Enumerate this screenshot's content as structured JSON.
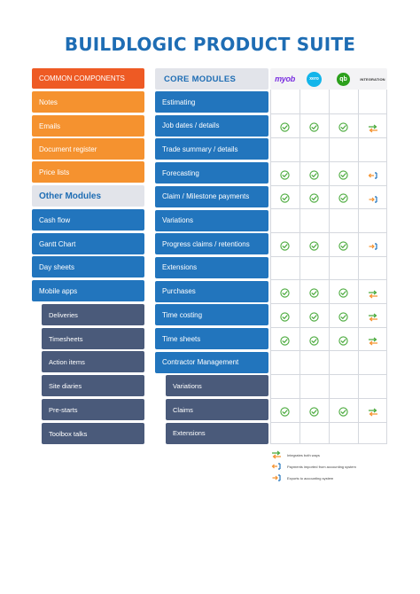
{
  "title": "BUILDLOGIC PRODUCT SUITE",
  "left_column": {
    "common_header": "COMMON COMPONENTS",
    "common_items": [
      "Notes",
      "Emails",
      "Document register",
      "Price lists"
    ],
    "other_header": "Other Modules",
    "other_items": [
      "Cash flow",
      "Gantt Chart",
      "Day sheets",
      "Mobile apps"
    ],
    "mobile_sub_items": [
      "Deliveries",
      "Timesheets",
      "Action items",
      "Site diaries",
      "Pre-starts",
      "Toolbox talks"
    ]
  },
  "core": {
    "header": "CORE MODULES",
    "logos": [
      {
        "name": "myob-logo",
        "text": "myob"
      },
      {
        "name": "xero-logo",
        "text": "xero"
      },
      {
        "name": "quickbooks-logo",
        "text": "qb"
      },
      {
        "name": "integration-label",
        "text": "INTEGRATION"
      }
    ],
    "rows": [
      {
        "label": "Estimating",
        "type": "blue",
        "myob": false,
        "xero": false,
        "qb": false,
        "integration": "none"
      },
      {
        "label": "Job dates / details",
        "type": "blue",
        "myob": true,
        "xero": true,
        "qb": true,
        "integration": "both"
      },
      {
        "label": "Trade summary / details",
        "type": "blue",
        "myob": false,
        "xero": false,
        "qb": false,
        "integration": "none"
      },
      {
        "label": "Forecasting",
        "type": "blue",
        "myob": true,
        "xero": true,
        "qb": true,
        "integration": "import"
      },
      {
        "label": "Claim / Milestone payments",
        "type": "blue",
        "myob": true,
        "xero": true,
        "qb": true,
        "integration": "export"
      },
      {
        "label": "Variations",
        "type": "blue",
        "myob": false,
        "xero": false,
        "qb": false,
        "integration": "none"
      },
      {
        "label": "Progress claims / retentions",
        "type": "blue",
        "myob": true,
        "xero": true,
        "qb": true,
        "integration": "export"
      },
      {
        "label": "Extensions",
        "type": "blue",
        "myob": false,
        "xero": false,
        "qb": false,
        "integration": "none"
      },
      {
        "label": "Purchases",
        "type": "blue",
        "myob": true,
        "xero": true,
        "qb": true,
        "integration": "both"
      },
      {
        "label": "Time costing",
        "type": "blue",
        "myob": true,
        "xero": true,
        "qb": true,
        "integration": "both"
      },
      {
        "label": "Time sheets",
        "type": "blue",
        "myob": true,
        "xero": true,
        "qb": true,
        "integration": "both"
      },
      {
        "label": "Contractor Management",
        "type": "blue",
        "myob": false,
        "xero": false,
        "qb": false,
        "integration": "none"
      },
      {
        "label": "Variations",
        "type": "sub",
        "myob": false,
        "xero": false,
        "qb": false,
        "integration": "none"
      },
      {
        "label": "Claims",
        "type": "sub",
        "myob": true,
        "xero": true,
        "qb": true,
        "integration": "both"
      },
      {
        "label": "Extensions",
        "type": "sub",
        "myob": false,
        "xero": false,
        "qb": false,
        "integration": "none"
      }
    ]
  },
  "legend": [
    {
      "icon": "both",
      "text": "Integrates both ways"
    },
    {
      "icon": "import",
      "text": "Payments imported from accounting system"
    },
    {
      "icon": "export",
      "text": "Exports to accounting system"
    }
  ],
  "colors": {
    "title_blue": "#1e6db4",
    "header_orange": "#ee5a24",
    "orange": "#f5922f",
    "blue": "#2275bd",
    "slate": "#4a5a7a",
    "check_green": "#4aaa3c",
    "arrow_orange": "#f5922f",
    "arrow_blue": "#2275bd"
  }
}
